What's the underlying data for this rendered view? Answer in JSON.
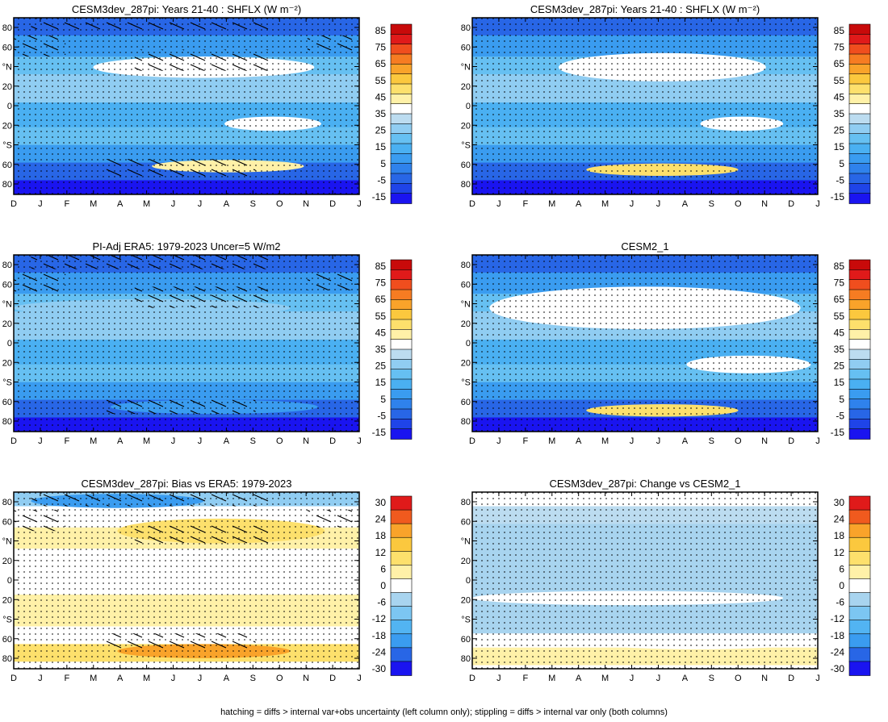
{
  "footer": "hatching = diffs > internal var+obs uncertainty (left column only); stippling = diffs > internal var only (both columns)",
  "colors": {
    "main_scale": [
      "#1a14f0",
      "#1f44e8",
      "#2866e6",
      "#2f82ec",
      "#3a9cf0",
      "#4ab0f2",
      "#66c0f2",
      "#90cdf2",
      "#bcdcf0",
      "#ffffff",
      "#fff1a8",
      "#fde06c",
      "#fbc83e",
      "#f9a32a",
      "#f67c22",
      "#f04e1e",
      "#e01a1a",
      "#c80a0a"
    ],
    "diff_scale": [
      "#1a14f0",
      "#2866e6",
      "#3a9cf0",
      "#52b4f2",
      "#7cc6f2",
      "#a8d4ef",
      "#ffffff",
      "#fff1a8",
      "#fde06c",
      "#fbc83e",
      "#f9a32a",
      "#f05a1e",
      "#e01a1a"
    ]
  },
  "chart_data": [
    {
      "type": "heatmap",
      "title": "CESM3dev_287pi: Years 21-40 : SHFLX (W m⁻²)",
      "x_ticks": [
        "D",
        "J",
        "F",
        "M",
        "A",
        "M",
        "J",
        "J",
        "A",
        "S",
        "O",
        "N",
        "D",
        "J"
      ],
      "y_ticks": [
        "80",
        "60",
        "°N",
        "20",
        "0",
        "20",
        "°S",
        "60",
        "80"
      ],
      "colorbar_labels": [
        "85",
        "75",
        "65",
        "55",
        "45",
        "35",
        "25",
        "15",
        "5",
        "-5",
        "-15"
      ],
      "hatching": true,
      "stippling": true
    },
    {
      "type": "heatmap",
      "title": "CESM3dev_287pi: Years 21-40 : SHFLX (W m⁻²)",
      "x_ticks": [
        "D",
        "J",
        "F",
        "M",
        "A",
        "M",
        "J",
        "J",
        "A",
        "S",
        "O",
        "N",
        "D",
        "J"
      ],
      "y_ticks": [
        "80",
        "60",
        "°N",
        "20",
        "0",
        "20",
        "°S",
        "60",
        "80"
      ],
      "colorbar_labels": [
        "85",
        "75",
        "65",
        "55",
        "45",
        "35",
        "25",
        "15",
        "5",
        "-5",
        "-15"
      ],
      "hatching": false,
      "stippling": true
    },
    {
      "type": "heatmap",
      "title": "PI-Adj ERA5: 1979-2023 Uncer=5 W/m2",
      "x_ticks": [
        "D",
        "J",
        "F",
        "M",
        "A",
        "M",
        "J",
        "J",
        "A",
        "S",
        "O",
        "N",
        "D",
        "J"
      ],
      "y_ticks": [
        "80",
        "60",
        "°N",
        "20",
        "0",
        "20",
        "°S",
        "60",
        "80"
      ],
      "colorbar_labels": [
        "85",
        "75",
        "65",
        "55",
        "45",
        "35",
        "25",
        "15",
        "5",
        "-5",
        "-15"
      ],
      "hatching": true,
      "stippling": true
    },
    {
      "type": "heatmap",
      "title": "CESM2_1",
      "x_ticks": [
        "D",
        "J",
        "F",
        "M",
        "A",
        "M",
        "J",
        "J",
        "A",
        "S",
        "O",
        "N",
        "D",
        "J"
      ],
      "y_ticks": [
        "80",
        "60",
        "°N",
        "20",
        "0",
        "20",
        "°S",
        "60",
        "80"
      ],
      "colorbar_labels": [
        "85",
        "75",
        "65",
        "55",
        "45",
        "35",
        "25",
        "15",
        "5",
        "-5",
        "-15"
      ],
      "hatching": false,
      "stippling": true
    },
    {
      "type": "heatmap",
      "title": "CESM3dev_287pi: Bias vs ERA5: 1979-2023",
      "x_ticks": [
        "D",
        "J",
        "F",
        "M",
        "A",
        "M",
        "J",
        "J",
        "A",
        "S",
        "O",
        "N",
        "D",
        "J"
      ],
      "y_ticks": [
        "80",
        "60",
        "°N",
        "20",
        "0",
        "20",
        "°S",
        "60",
        "80"
      ],
      "colorbar_labels": [
        "30",
        "24",
        "18",
        "12",
        "6",
        "0",
        "-6",
        "-12",
        "-18",
        "-24",
        "-30"
      ],
      "hatching": true,
      "stippling": true
    },
    {
      "type": "heatmap",
      "title": "CESM3dev_287pi: Change vs CESM2_1",
      "x_ticks": [
        "D",
        "J",
        "F",
        "M",
        "A",
        "M",
        "J",
        "J",
        "A",
        "S",
        "O",
        "N",
        "D",
        "J"
      ],
      "y_ticks": [
        "80",
        "60",
        "°N",
        "20",
        "0",
        "20",
        "°S",
        "60",
        "80"
      ],
      "colorbar_labels": [
        "30",
        "24",
        "18",
        "12",
        "6",
        "0",
        "-6",
        "-12",
        "-18",
        "-24",
        "-30"
      ],
      "hatching": false,
      "stippling": true
    }
  ]
}
